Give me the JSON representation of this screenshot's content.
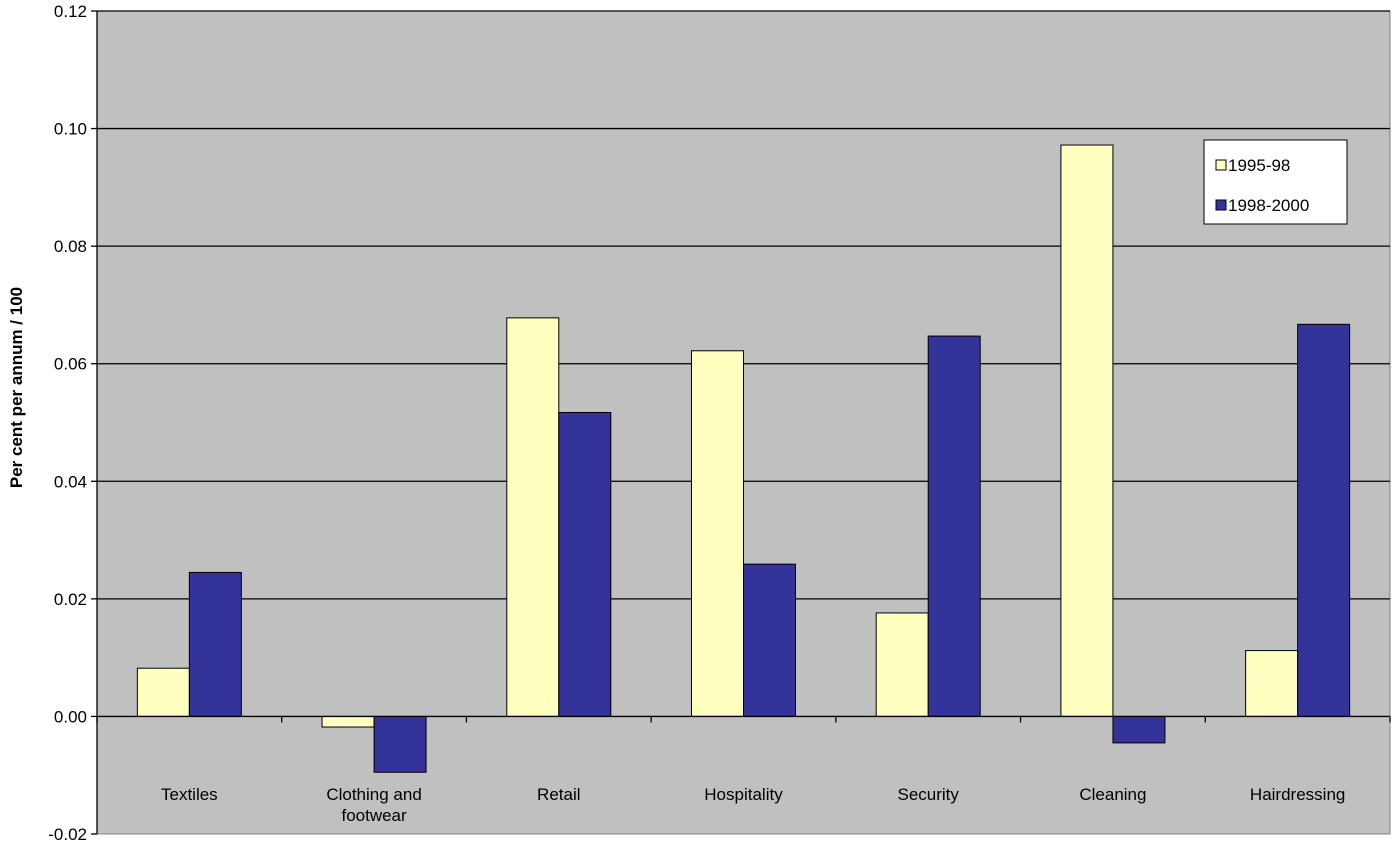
{
  "chart_data": {
    "type": "bar",
    "categories": [
      "Textiles",
      "Clothing and footwear",
      "Retail",
      "Hospitality",
      "Security",
      "Cleaning",
      "Hairdressing"
    ],
    "category_lines": [
      [
        "Textiles"
      ],
      [
        "Clothing and",
        "footwear"
      ],
      [
        "Retail"
      ],
      [
        "Hospitality"
      ],
      [
        "Security"
      ],
      [
        "Cleaning"
      ],
      [
        "Hairdressing"
      ]
    ],
    "series": [
      {
        "name": "1995-98",
        "color": "#ffffc0",
        "values": [
          0.0082,
          -0.0018,
          0.0678,
          0.0622,
          0.0176,
          0.0972,
          0.0112
        ]
      },
      {
        "name": "1998-2000",
        "color": "#333399",
        "values": [
          0.0245,
          -0.0095,
          0.0517,
          0.0259,
          0.0647,
          -0.0045,
          0.0667
        ]
      }
    ],
    "ylabel": "Per cent per annum / 100",
    "xlabel": "",
    "title": "",
    "ylim": [
      -0.02,
      0.12
    ],
    "yticks": [
      -0.02,
      0.0,
      0.02,
      0.04,
      0.06,
      0.08,
      0.1,
      0.12
    ],
    "ytick_labels": [
      "-0.02",
      "0.00",
      "0.02",
      "0.04",
      "0.06",
      "0.08",
      "0.10",
      "0.12"
    ],
    "gridlines": true,
    "legend_position": "top-right",
    "plot_background": "#c0c0c0"
  }
}
